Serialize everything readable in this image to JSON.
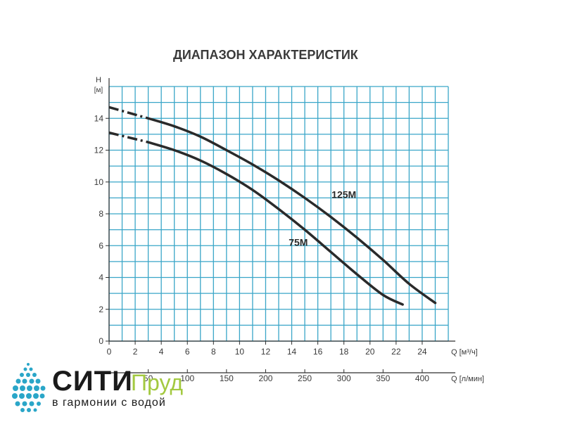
{
  "chart_data": {
    "type": "line",
    "title": "ДИАПАЗОН ХАРАКТЕРИСТИК",
    "y_axis_label_top": "H",
    "y_axis_label_unit": "[м]",
    "x_axis_label": "Q [м³/ч]",
    "x2_axis_label": "Q [л/мин]",
    "xlim": [
      0,
      26
    ],
    "ylim": [
      0,
      16
    ],
    "x_ticks": [
      0,
      2,
      4,
      6,
      8,
      10,
      12,
      14,
      16,
      18,
      20,
      22,
      24
    ],
    "x2_ticks": [
      50,
      100,
      150,
      200,
      250,
      300,
      350,
      400
    ],
    "y_ticks": [
      0,
      2,
      4,
      6,
      8,
      10,
      12,
      14
    ],
    "grid": true,
    "series": [
      {
        "name": "125M",
        "label_at": [
          18,
          9
        ],
        "dashed_until_x": 3,
        "x": [
          0,
          3,
          5,
          7,
          9,
          11,
          13,
          15,
          17,
          19,
          21,
          23,
          25
        ],
        "y": [
          14.7,
          14.0,
          13.5,
          12.85,
          12.0,
          11.1,
          10.1,
          9.0,
          7.8,
          6.5,
          5.1,
          3.6,
          2.4
        ]
      },
      {
        "name": "75M",
        "label_at": [
          14.5,
          6
        ],
        "dashed_until_x": 3,
        "x": [
          0,
          3,
          5,
          7,
          9,
          11,
          13,
          15,
          17,
          19,
          21,
          22.5
        ],
        "y": [
          13.1,
          12.5,
          12.0,
          11.35,
          10.5,
          9.5,
          8.3,
          7.0,
          5.6,
          4.2,
          2.9,
          2.3
        ]
      }
    ],
    "colors": {
      "grid": "#3aa6c8",
      "axis": "#2f2f2f",
      "curve": "#2a2a2a",
      "text": "#3a3a3a"
    }
  },
  "logo": {
    "word1": "СИТИ",
    "word2": "Пруд",
    "tagline": "в гармонии с водой",
    "colors": {
      "word1": "#1a1a1a",
      "word2": "#a3c940",
      "dots": "#2aa6c8"
    }
  }
}
